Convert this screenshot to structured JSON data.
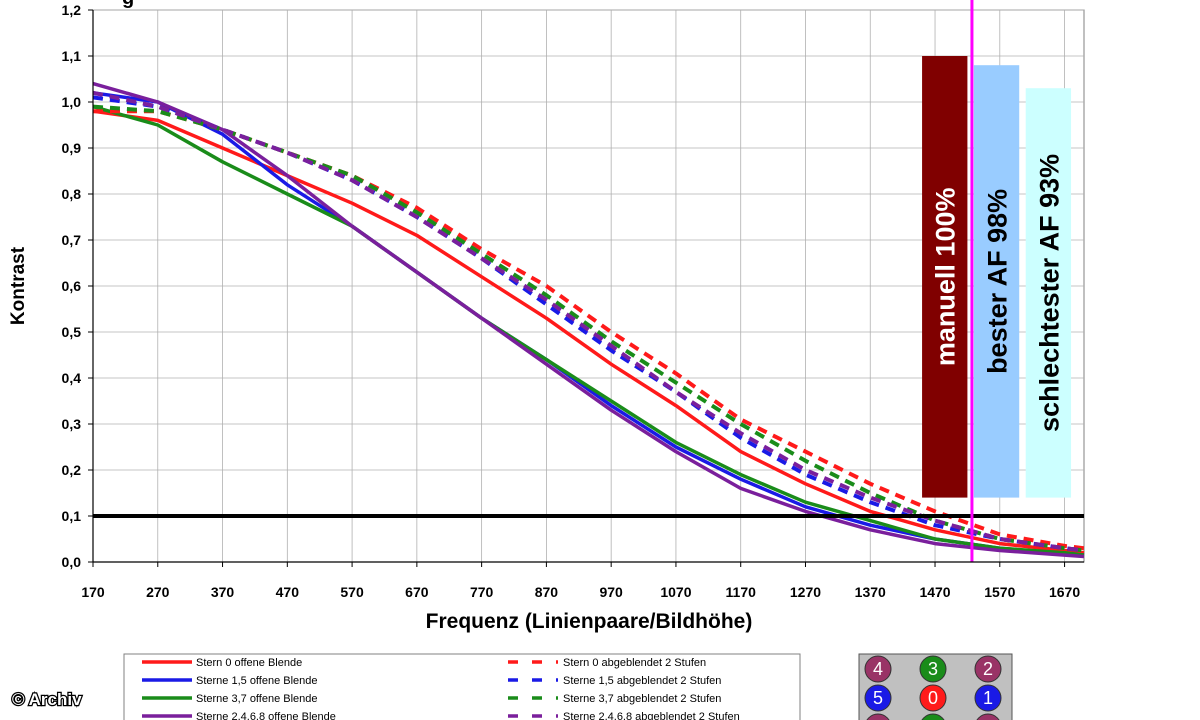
{
  "chart_data": {
    "type": "line",
    "title_fragment": "g",
    "xlabel": "Frequenz (Linienpaare/Bildhöhe)",
    "ylabel": "Kontrast",
    "xlim": [
      170,
      1700
    ],
    "ylim": [
      0,
      1.2
    ],
    "x_ticks": [
      "170",
      "270",
      "370",
      "470",
      "570",
      "670",
      "770",
      "870",
      "970",
      "1070",
      "1170",
      "1270",
      "1370",
      "1470",
      "1570",
      "1670"
    ],
    "y_ticks": [
      "0,0",
      "0,1",
      "0,2",
      "0,3",
      "0,4",
      "0,5",
      "0,6",
      "0,7",
      "0,8",
      "0,9",
      "1,0",
      "1,1",
      "1,2"
    ],
    "grid": true,
    "reference_line": {
      "y": 0.1,
      "color": "#000000"
    },
    "vertical_marker": {
      "x": 1527,
      "color": "#ff00ff"
    },
    "series": [
      {
        "name": "Stern 0 offene Blende",
        "color": "#ff1a1a",
        "dash": false,
        "x": [
          170,
          270,
          370,
          470,
          570,
          670,
          770,
          870,
          970,
          1070,
          1170,
          1270,
          1370,
          1470,
          1570,
          1670,
          1700
        ],
        "y": [
          0.98,
          0.96,
          0.9,
          0.84,
          0.78,
          0.71,
          0.62,
          0.53,
          0.43,
          0.34,
          0.24,
          0.17,
          0.11,
          0.07,
          0.04,
          0.025,
          0.02
        ]
      },
      {
        "name": "Sterne 1,5 offene Blende",
        "color": "#1a1ae6",
        "dash": false,
        "x": [
          170,
          270,
          370,
          470,
          570,
          670,
          770,
          870,
          970,
          1070,
          1170,
          1270,
          1370,
          1470,
          1570,
          1670,
          1700
        ],
        "y": [
          1.02,
          1.0,
          0.93,
          0.82,
          0.73,
          0.63,
          0.53,
          0.44,
          0.34,
          0.25,
          0.18,
          0.12,
          0.08,
          0.05,
          0.03,
          0.018,
          0.015
        ]
      },
      {
        "name": "Sterne 3,7 offene Blende",
        "color": "#1a8c1a",
        "dash": false,
        "x": [
          170,
          270,
          370,
          470,
          570,
          670,
          770,
          870,
          970,
          1070,
          1170,
          1270,
          1370,
          1470,
          1570,
          1670,
          1700
        ],
        "y": [
          0.99,
          0.95,
          0.87,
          0.8,
          0.73,
          0.63,
          0.53,
          0.44,
          0.35,
          0.26,
          0.19,
          0.13,
          0.09,
          0.05,
          0.03,
          0.02,
          0.015
        ]
      },
      {
        "name": "Sterne 2,4,6,8 offene Blende",
        "color": "#7a1f9c",
        "dash": false,
        "x": [
          170,
          270,
          370,
          470,
          570,
          670,
          770,
          870,
          970,
          1070,
          1170,
          1270,
          1370,
          1470,
          1570,
          1670,
          1700
        ],
        "y": [
          1.04,
          1.0,
          0.94,
          0.84,
          0.73,
          0.63,
          0.53,
          0.43,
          0.33,
          0.24,
          0.16,
          0.11,
          0.07,
          0.04,
          0.025,
          0.015,
          0.012
        ]
      },
      {
        "name": "Stern 0 abgeblendet 2 Stufen",
        "color": "#ff1a1a",
        "dash": true,
        "x": [
          170,
          270,
          370,
          470,
          570,
          670,
          770,
          870,
          970,
          1070,
          1170,
          1270,
          1370,
          1470,
          1570,
          1670,
          1700
        ],
        "y": [
          0.98,
          0.98,
          0.94,
          0.89,
          0.84,
          0.77,
          0.68,
          0.6,
          0.5,
          0.41,
          0.31,
          0.24,
          0.17,
          0.11,
          0.06,
          0.035,
          0.03
        ]
      },
      {
        "name": "Sterne 1,5 abgeblendet 2 Stufen",
        "color": "#1a1ae6",
        "dash": true,
        "x": [
          170,
          270,
          370,
          470,
          570,
          670,
          770,
          870,
          970,
          1070,
          1170,
          1270,
          1370,
          1470,
          1570,
          1670,
          1700
        ],
        "y": [
          1.01,
          0.99,
          0.94,
          0.89,
          0.83,
          0.75,
          0.66,
          0.56,
          0.46,
          0.37,
          0.27,
          0.19,
          0.13,
          0.08,
          0.05,
          0.03,
          0.025
        ]
      },
      {
        "name": "Sterne 3,7 abgeblendet 2 Stufen",
        "color": "#1a8c1a",
        "dash": true,
        "x": [
          170,
          270,
          370,
          470,
          570,
          670,
          770,
          870,
          970,
          1070,
          1170,
          1270,
          1370,
          1470,
          1570,
          1670,
          1700
        ],
        "y": [
          0.99,
          0.98,
          0.94,
          0.89,
          0.84,
          0.76,
          0.67,
          0.58,
          0.48,
          0.39,
          0.3,
          0.22,
          0.15,
          0.09,
          0.05,
          0.03,
          0.025
        ]
      },
      {
        "name": "Sterne 2,4,6,8 abgeblendet 2 Stufen",
        "color": "#7a1f9c",
        "dash": true,
        "x": [
          170,
          270,
          370,
          470,
          570,
          670,
          770,
          870,
          970,
          1070,
          1170,
          1270,
          1370,
          1470,
          1570,
          1670,
          1700
        ],
        "y": [
          1.02,
          0.99,
          0.94,
          0.89,
          0.83,
          0.75,
          0.66,
          0.57,
          0.47,
          0.37,
          0.28,
          0.2,
          0.14,
          0.09,
          0.05,
          0.03,
          0.025
        ]
      }
    ],
    "bars": [
      {
        "label": "manuell 100%",
        "value": 1.1,
        "fill": "#800000",
        "text_color": "#ffffff",
        "x_start": 1450,
        "x_end": 1520
      },
      {
        "label": "bester AF 98%",
        "value": 1.08,
        "fill": "#99ccff",
        "text_color": "#000000",
        "x_start": 1530,
        "x_end": 1600
      },
      {
        "label": "schlechtester AF 93%",
        "value": 1.03,
        "fill": "#ccffff",
        "text_color": "#000000",
        "x_start": 1610,
        "x_end": 1680
      }
    ]
  },
  "marker_grid": [
    {
      "label": "4",
      "color": "#993366"
    },
    {
      "label": "3",
      "color": "#1a8c1a"
    },
    {
      "label": "2",
      "color": "#993366"
    },
    {
      "label": "5",
      "color": "#1a1ae6"
    },
    {
      "label": "0",
      "color": "#ff1a1a"
    },
    {
      "label": "1",
      "color": "#1a1ae6"
    },
    {
      "label": "",
      "color": "#993366"
    },
    {
      "label": "",
      "color": "#1a8c1a"
    },
    {
      "label": "",
      "color": "#993366"
    }
  ],
  "credit": "© Archiv"
}
